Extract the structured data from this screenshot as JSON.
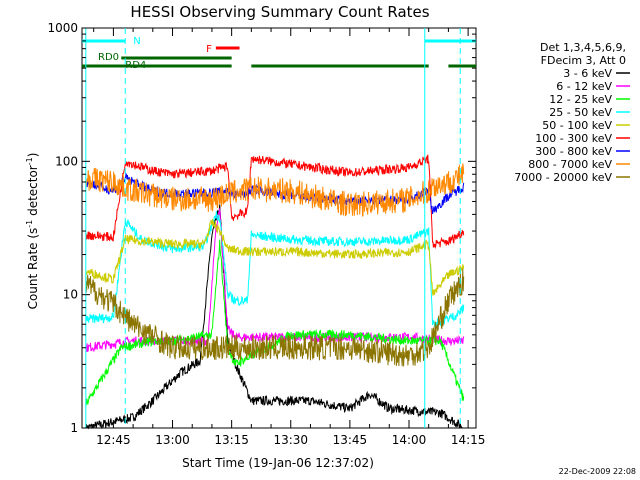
{
  "chart_data": {
    "type": "line",
    "title": "HESSI Observing Summary Count Rates",
    "xlabel": "Start Time (19-Jan-06 12:37:02)",
    "ylabel_main": "Count Rate (s",
    "ylabel_sup1": "-1",
    "ylabel_mid": " detector",
    "ylabel_sup2": "-1",
    "ylabel_end": ")",
    "yscale": "log",
    "ylim": [
      1,
      1000
    ],
    "xlim": [
      "12:37:02",
      "14:17:00"
    ],
    "x_ticks": [
      "12:45",
      "13:00",
      "13:15",
      "13:30",
      "13:45",
      "14:00",
      "14:15"
    ],
    "y_ticks": [
      "1",
      "10",
      "100",
      "1000"
    ],
    "grid": false,
    "legend_position": "right",
    "legend_header": [
      "Det 1,3,4,5,6,9,",
      "FDecim 3, Att 0"
    ],
    "series": [
      {
        "name": "3 - 6 keV",
        "color": "#000000",
        "points": [
          [
            "12:38",
            1.0
          ],
          [
            "12:50",
            1.2
          ],
          [
            "12:55",
            1.6
          ],
          [
            "13:02",
            2.6
          ],
          [
            "13:07",
            3.2
          ],
          [
            "13:10",
            28
          ],
          [
            "13:12",
            45
          ],
          [
            "13:14",
            4.5
          ],
          [
            "13:16",
            3.0
          ],
          [
            "13:20",
            1.6
          ],
          [
            "13:35",
            1.6
          ],
          [
            "13:45",
            1.4
          ],
          [
            "13:50",
            1.8
          ],
          [
            "13:55",
            1.4
          ],
          [
            "14:08",
            1.3
          ],
          [
            "14:14",
            1.0
          ]
        ]
      },
      {
        "name": "6 - 12 keV",
        "color": "#ff00ff",
        "points": [
          [
            "12:38",
            4.0
          ],
          [
            "12:50",
            4.5
          ],
          [
            "13:00",
            4.5
          ],
          [
            "13:09",
            4.5
          ],
          [
            "13:11",
            30
          ],
          [
            "13:12",
            45
          ],
          [
            "13:14",
            5.5
          ],
          [
            "13:16",
            4.8
          ],
          [
            "13:30",
            4.8
          ],
          [
            "13:45",
            4.8
          ],
          [
            "14:00",
            4.8
          ],
          [
            "14:10",
            4.5
          ],
          [
            "14:14",
            4.5
          ]
        ]
      },
      {
        "name": "12 - 25 keV",
        "color": "#00ff00",
        "points": [
          [
            "12:38",
            1.5
          ],
          [
            "12:47",
            4.0
          ],
          [
            "12:55",
            4.5
          ],
          [
            "13:00",
            4.5
          ],
          [
            "13:10",
            5.0
          ],
          [
            "13:12",
            25
          ],
          [
            "13:14",
            4.0
          ],
          [
            "13:16",
            3.0
          ],
          [
            "13:30",
            5.0
          ],
          [
            "13:45",
            5.0
          ],
          [
            "14:00",
            4.5
          ],
          [
            "14:08",
            4.5
          ],
          [
            "14:14",
            1.6
          ]
        ]
      },
      {
        "name": "25 - 50 keV",
        "color": "#00ffff",
        "points": [
          [
            "12:38",
            6.5
          ],
          [
            "12:45",
            6.8
          ],
          [
            "12:48",
            36
          ],
          [
            "12:52",
            26
          ],
          [
            "13:00",
            22
          ],
          [
            "13:08",
            23
          ],
          [
            "13:11",
            40
          ],
          [
            "13:12",
            38
          ],
          [
            "13:14",
            10
          ],
          [
            "13:16",
            9.0
          ],
          [
            "13:19",
            9.0
          ],
          [
            "13:20",
            28
          ],
          [
            "13:30",
            26
          ],
          [
            "13:40",
            25
          ],
          [
            "13:50",
            25
          ],
          [
            "14:00",
            26
          ],
          [
            "14:05",
            30
          ],
          [
            "14:06",
            6.0
          ],
          [
            "14:12",
            7.0
          ],
          [
            "14:14",
            8.0
          ]
        ]
      },
      {
        "name": "50 - 100 keV",
        "color": "#cccc00",
        "points": [
          [
            "12:38",
            15
          ],
          [
            "12:45",
            13
          ],
          [
            "12:48",
            26
          ],
          [
            "13:00",
            24
          ],
          [
            "13:08",
            24
          ],
          [
            "13:10",
            35
          ],
          [
            "13:12",
            30
          ],
          [
            "13:14",
            22
          ],
          [
            "13:19",
            21
          ],
          [
            "13:20",
            21
          ],
          [
            "13:30",
            21
          ],
          [
            "13:45",
            20
          ],
          [
            "14:00",
            21
          ],
          [
            "14:05",
            24
          ],
          [
            "14:06",
            10
          ],
          [
            "14:10",
            14
          ],
          [
            "14:14",
            16
          ]
        ]
      },
      {
        "name": "100 - 300 keV",
        "color": "#ff0000",
        "points": [
          [
            "12:38",
            28
          ],
          [
            "12:45",
            27
          ],
          [
            "12:48",
            100
          ],
          [
            "12:55",
            85
          ],
          [
            "13:00",
            80
          ],
          [
            "13:10",
            85
          ],
          [
            "13:14",
            92
          ],
          [
            "13:15",
            38
          ],
          [
            "13:19",
            42
          ],
          [
            "13:20",
            105
          ],
          [
            "13:30",
            95
          ],
          [
            "13:45",
            82
          ],
          [
            "14:00",
            90
          ],
          [
            "14:05",
            105
          ],
          [
            "14:06",
            24
          ],
          [
            "14:10",
            25
          ],
          [
            "14:14",
            30
          ]
        ]
      },
      {
        "name": "300 - 800 keV",
        "color": "#0000ff",
        "points": [
          [
            "12:38",
            70
          ],
          [
            "12:45",
            60
          ],
          [
            "12:48",
            75
          ],
          [
            "12:55",
            60
          ],
          [
            "13:00",
            57
          ],
          [
            "13:10",
            58
          ],
          [
            "13:14",
            60
          ],
          [
            "13:15",
            56
          ],
          [
            "13:19",
            57
          ],
          [
            "13:20",
            62
          ],
          [
            "13:30",
            55
          ],
          [
            "13:45",
            50
          ],
          [
            "14:00",
            52
          ],
          [
            "14:05",
            60
          ],
          [
            "14:06",
            42
          ],
          [
            "14:10",
            55
          ],
          [
            "14:14",
            65
          ]
        ]
      },
      {
        "name": "800 - 7000 keV",
        "color": "#ff8800",
        "points": [
          [
            "12:38",
            75
          ],
          [
            "12:45",
            70
          ],
          [
            "12:50",
            60
          ],
          [
            "13:00",
            52
          ],
          [
            "13:10",
            52
          ],
          [
            "13:15",
            58
          ],
          [
            "13:20",
            62
          ],
          [
            "13:30",
            60
          ],
          [
            "13:45",
            47
          ],
          [
            "14:00",
            52
          ],
          [
            "14:05",
            60
          ],
          [
            "14:06",
            65
          ],
          [
            "14:10",
            70
          ],
          [
            "14:14",
            80
          ]
        ]
      },
      {
        "name": "7000 - 20000 keV",
        "color": "#8b7500",
        "points": [
          [
            "12:38",
            12
          ],
          [
            "12:45",
            8.5
          ],
          [
            "12:50",
            6.0
          ],
          [
            "13:00",
            4.0
          ],
          [
            "13:10",
            4.0
          ],
          [
            "13:20",
            4.0
          ],
          [
            "13:30",
            4.0
          ],
          [
            "13:45",
            4.0
          ],
          [
            "14:00",
            3.5
          ],
          [
            "14:05",
            4.0
          ],
          [
            "14:10",
            9.0
          ],
          [
            "14:14",
            13
          ]
        ]
      }
    ],
    "flags": [
      {
        "name": "N",
        "color": "#00ffff",
        "intervals": [
          [
            "12:37",
            "12:48"
          ],
          [
            "14:04",
            "14:17"
          ]
        ]
      },
      {
        "name": "F",
        "color": "#ff0000",
        "intervals": [
          [
            "13:11",
            "13:17"
          ]
        ]
      },
      {
        "name": "RD0",
        "color": "#006600",
        "intervals": [
          [
            "12:37",
            "13:15"
          ],
          [
            "13:20",
            "14:05"
          ],
          [
            "14:10",
            "14:17"
          ]
        ]
      },
      {
        "name": "RD4",
        "color": "#006600",
        "intervals": [
          [
            "12:47",
            "13:15"
          ]
        ]
      }
    ],
    "vlines": [
      {
        "time": "12:38",
        "style": "solid"
      },
      {
        "time": "12:48",
        "style": "dashed"
      },
      {
        "time": "14:04",
        "style": "solid"
      },
      {
        "time": "14:13",
        "style": "dashed"
      }
    ]
  },
  "timestamp": "22-Dec-2009 22:08"
}
